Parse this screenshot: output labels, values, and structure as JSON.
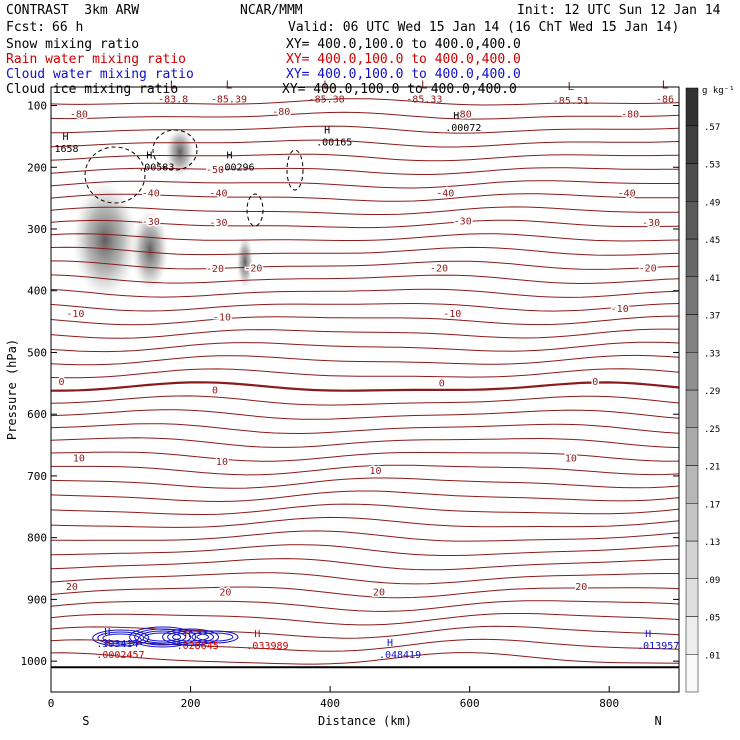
{
  "header": {
    "title_left": "CONTRAST  3km ARW",
    "org": "NCAR/MMM",
    "init": "Init: 12 UTC Sun 12 Jan 14",
    "fcst_label": "Fcst:",
    "fcst_value": "66 h",
    "valid": "Valid: 06 UTC Wed 15 Jan 14 (16 ChT Wed 15 Jan 14)"
  },
  "legend": [
    {
      "label": "Snow mixing ratio",
      "xy": "XY= 400.0,100.0 to 400.0,400.0",
      "color": "#000000"
    },
    {
      "label": "Rain water mixing ratio",
      "xy": "XY= 400.0,100.0 to 400.0,400.0",
      "color": "#cc0000"
    },
    {
      "label": "Cloud water mixing ratio",
      "xy": "XY= 400.0,100.0 to 400.0,400.0",
      "color": "#1010cc"
    },
    {
      "label": "Cloud ice mixing ratio",
      "xy": "XY= 400.0,100.0 to 400.0,400.0",
      "color": "#000000"
    }
  ],
  "colors": {
    "temperature_contour": "#8b1a1a",
    "rain": "#cc0000",
    "cloud_water": "#1010cc",
    "ice": "#000000"
  },
  "chart_data": {
    "type": "cross-section",
    "xlabel": "Distance (km)",
    "ylabel": "Pressure (hPa)",
    "xlim": [
      0,
      900
    ],
    "ylim": [
      1050,
      70
    ],
    "xticks": [
      0,
      200,
      400,
      600,
      800
    ],
    "yticks": [
      100,
      200,
      300,
      400,
      500,
      600,
      700,
      800,
      900,
      1000
    ],
    "start_label": "S",
    "end_label": "N",
    "colorbar": {
      "unit": "g kg⁻¹",
      "levels": [
        ".01",
        ".05",
        ".09",
        ".13",
        ".17",
        ".21",
        ".25",
        ".29",
        ".33",
        ".37",
        ".41",
        ".45",
        ".49",
        ".53",
        ".57"
      ]
    },
    "temperature_contours": [
      {
        "label": "-80",
        "labels": [
          {
            "x": 40,
            "p": 113,
            "t": "-80"
          },
          {
            "x": 330,
            "p": 109,
            "t": "-80"
          },
          {
            "x": 590,
            "p": 113,
            "t": "-80"
          },
          {
            "x": 830,
            "p": 113,
            "t": "-80"
          }
        ]
      },
      {
        "label": "-50",
        "labels": [
          {
            "x": 235,
            "p": 203,
            "t": "-50"
          }
        ]
      },
      {
        "label": "-40",
        "labels": [
          {
            "x": 143,
            "p": 241,
            "t": "-40"
          },
          {
            "x": 240,
            "p": 241,
            "t": "-40"
          },
          {
            "x": 565,
            "p": 241,
            "t": "-40"
          },
          {
            "x": 825,
            "p": 241,
            "t": "-40"
          }
        ]
      },
      {
        "label": "-30",
        "labels": [
          {
            "x": 143,
            "p": 287,
            "t": "-30"
          },
          {
            "x": 240,
            "p": 289,
            "t": "-30"
          },
          {
            "x": 590,
            "p": 286,
            "t": "-30"
          },
          {
            "x": 860,
            "p": 289,
            "t": "-30"
          }
        ]
      },
      {
        "label": "-20",
        "labels": [
          {
            "x": 235,
            "p": 363,
            "t": "-20"
          },
          {
            "x": 290,
            "p": 362,
            "t": "-20"
          },
          {
            "x": 556,
            "p": 362,
            "t": "-20"
          },
          {
            "x": 855,
            "p": 362,
            "t": "-20"
          }
        ]
      },
      {
        "label": "-10",
        "labels": [
          {
            "x": 35,
            "p": 436,
            "t": "-10"
          },
          {
            "x": 245,
            "p": 442,
            "t": "-10"
          },
          {
            "x": 575,
            "p": 436,
            "t": "-10"
          },
          {
            "x": 815,
            "p": 428,
            "t": "-10"
          }
        ]
      },
      {
        "label": "0",
        "labels": [
          {
            "x": 15,
            "p": 546,
            "t": "0"
          },
          {
            "x": 235,
            "p": 560,
            "t": "0"
          },
          {
            "x": 560,
            "p": 549,
            "t": "0"
          },
          {
            "x": 780,
            "p": 546,
            "t": "0"
          }
        ]
      },
      {
        "label": "10",
        "labels": [
          {
            "x": 40,
            "p": 670,
            "t": "10"
          },
          {
            "x": 245,
            "p": 676,
            "t": "10"
          },
          {
            "x": 465,
            "p": 690,
            "t": "10"
          },
          {
            "x": 745,
            "p": 670,
            "t": "10"
          }
        ]
      },
      {
        "label": "20",
        "labels": [
          {
            "x": 30,
            "p": 878,
            "t": "20"
          },
          {
            "x": 250,
            "p": 887,
            "t": "20"
          },
          {
            "x": 470,
            "p": 887,
            "t": "20"
          },
          {
            "x": 760,
            "p": 878,
            "t": "20"
          }
        ]
      }
    ],
    "minima_labels": [
      {
        "x": 175,
        "p": 85,
        "t": "-83.8"
      },
      {
        "x": 255,
        "p": 85,
        "t": "-85.39"
      },
      {
        "x": 395,
        "p": 85,
        "t": "-85.38"
      },
      {
        "x": 535,
        "p": 85,
        "t": "-85.33"
      },
      {
        "x": 745,
        "p": 88,
        "t": "-85.51"
      },
      {
        "x": 880,
        "p": 85,
        "t": "-86"
      }
    ],
    "highs": [
      {
        "x": 380,
        "p": 165,
        "t": ".00165",
        "color": "#000000"
      },
      {
        "x": 565,
        "p": 141,
        "t": ".00072",
        "color": "#000000"
      },
      {
        "x": 125,
        "p": 205,
        "t": ".00583",
        "color": "#000000"
      },
      {
        "x": 240,
        "p": 205,
        "t": ".00296",
        "color": "#000000"
      },
      {
        "x": 5,
        "p": 175,
        "t": "1658",
        "color": "#000000"
      },
      {
        "x": 65,
        "p": 977,
        "t": ".393414",
        "color": "#1010cc"
      },
      {
        "x": 65,
        "p": 995,
        "t": ".0002457",
        "color": "#cc0000"
      },
      {
        "x": 180,
        "p": 980,
        "t": ".028645",
        "color": "#cc0000"
      },
      {
        "x": 280,
        "p": 980,
        "t": ".033989",
        "color": "#cc0000"
      },
      {
        "x": 470,
        "p": 995,
        "t": ".048419",
        "color": "#1010cc"
      },
      {
        "x": 840,
        "p": 980,
        "t": ".013957",
        "color": "#1010cc"
      }
    ]
  }
}
